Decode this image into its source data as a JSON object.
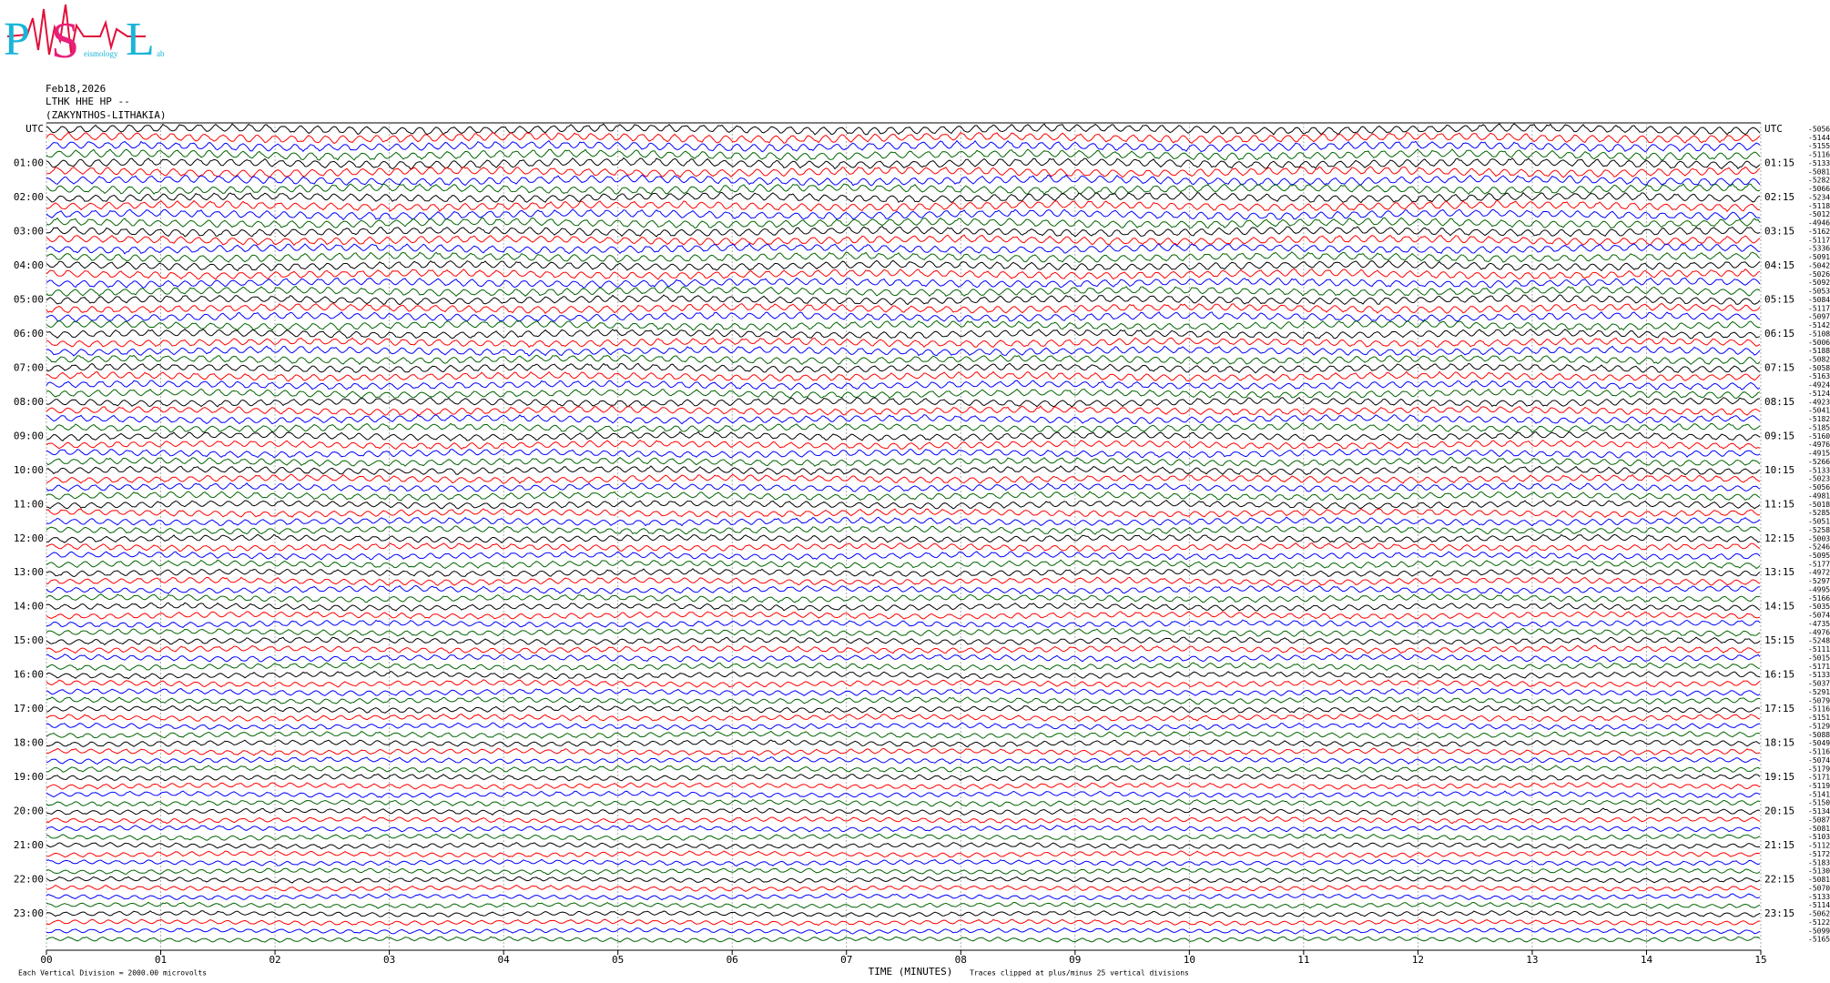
{
  "logo": {
    "p": "P",
    "s": "S",
    "l": "L",
    "s_rest": "eismology",
    "l_rest": "ab"
  },
  "header": {
    "date": "Feb18,2026",
    "station": "LTHK HHE HP --",
    "location": "(ZAKYNTHOS-LITHAKIA)"
  },
  "chart_data": {
    "type": "helicorder",
    "left_labels": [
      "UTC",
      "01:00",
      "02:00",
      "03:00",
      "04:00",
      "05:00",
      "06:00",
      "07:00",
      "08:00",
      "09:00",
      "10:00",
      "11:00",
      "12:00",
      "13:00",
      "14:00",
      "15:00",
      "16:00",
      "17:00",
      "18:00",
      "19:00",
      "20:00",
      "21:00",
      "22:00",
      "23:00"
    ],
    "right_labels": [
      "UTC",
      "01:15",
      "02:15",
      "03:15",
      "04:15",
      "05:15",
      "06:15",
      "07:15",
      "08:15",
      "09:15",
      "10:15",
      "11:15",
      "12:15",
      "13:15",
      "14:15",
      "15:15",
      "16:15",
      "17:15",
      "18:15",
      "19:15",
      "20:15",
      "21:15",
      "22:15",
      "23:15"
    ],
    "offsets": [
      -5056,
      -5144,
      -5155,
      -5116,
      -5133,
      -5081,
      -5282,
      -5066,
      -5234,
      -5118,
      -5012,
      -4946,
      -5162,
      -5117,
      -5336,
      -5091,
      -5042,
      -5026,
      -5092,
      -5053,
      -5084,
      -5117,
      -5097,
      -5142,
      -5108,
      -5006,
      -5188,
      -5082,
      -5058,
      -5163,
      -4924,
      -5124,
      -4923,
      -5041,
      -5182,
      -5185,
      -5160,
      -4976,
      -4915,
      -5266,
      -5133,
      -5023,
      -5056,
      -4981,
      -5018,
      -5285,
      -5051,
      -5258,
      -5003,
      -5246,
      -5095,
      -5177,
      -4972,
      -5297,
      -4995,
      -5166,
      -5035,
      -5074,
      -4735,
      -4976,
      -5248,
      -5111,
      -5015,
      -5171,
      -5133,
      -5037,
      -5291,
      -5079,
      -5116,
      -5151,
      -5129,
      -5088,
      -5049,
      -5116,
      -5074,
      -5179,
      -5171,
      -5119,
      -5141,
      -5150,
      -5134,
      -5087,
      -5081,
      -5103,
      -5112,
      -5172,
      -5183,
      -5130,
      -5081,
      -5070,
      -5133,
      -5114,
      -5062,
      -5122,
      -5099,
      -5165
    ],
    "colors": [
      "#000000",
      "#ff0000",
      "#0000ff",
      "#006400"
    ],
    "xlim": [
      0,
      15
    ],
    "xticks": [
      {
        "value": 0,
        "label": "00"
      },
      {
        "value": 1,
        "label": "01"
      },
      {
        "value": 2,
        "label": "02"
      },
      {
        "value": 3,
        "label": "03"
      },
      {
        "value": 4,
        "label": "04"
      },
      {
        "value": 5,
        "label": "05"
      },
      {
        "value": 6,
        "label": "06"
      },
      {
        "value": 7,
        "label": "07"
      },
      {
        "value": 8,
        "label": "08"
      },
      {
        "value": 9,
        "label": "09"
      },
      {
        "value": 10,
        "label": "10"
      },
      {
        "value": 11,
        "label": "11"
      },
      {
        "value": 12,
        "label": "12"
      },
      {
        "value": 13,
        "label": "13"
      },
      {
        "value": 14,
        "label": "14"
      },
      {
        "value": 15,
        "label": "15"
      }
    ],
    "xlabel": "TIME (MINUTES)",
    "note_left": "Each Vertical Division = 2000.00 microvolts",
    "note_right": "Traces clipped at plus/minus 25 vertical divisions",
    "grid": true
  }
}
